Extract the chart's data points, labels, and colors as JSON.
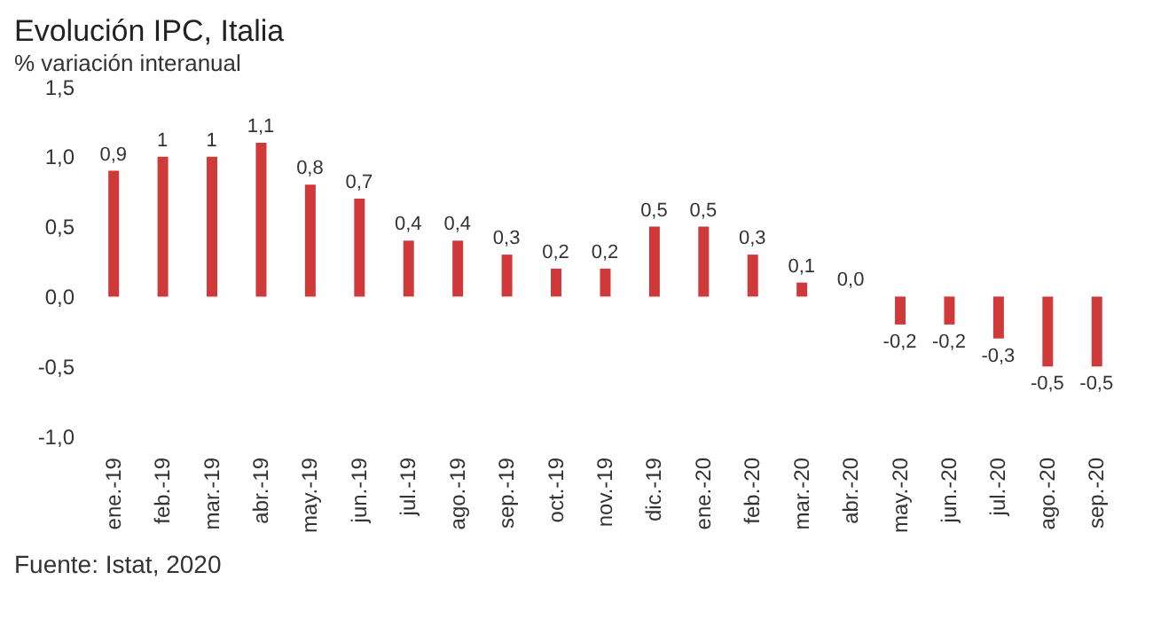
{
  "chart_data": {
    "type": "bar",
    "title": "Evolución IPC, Italia",
    "subtitle": "% variación interanual",
    "categories": [
      "ene.-19",
      "feb.-19",
      "mar.-19",
      "abr.-19",
      "may.-19",
      "jun.-19",
      "jul.-19",
      "ago.-19",
      "sep.-19",
      "oct.-19",
      "nov.-19",
      "dic.-19",
      "ene.-20",
      "feb.-20",
      "mar.-20",
      "abr.-20",
      "may.-20",
      "jun.-20",
      "jul.-20",
      "ago.-20",
      "sep.-20"
    ],
    "values": [
      0.9,
      1,
      1,
      1.1,
      0.8,
      0.7,
      0.4,
      0.4,
      0.3,
      0.2,
      0.2,
      0.5,
      0.5,
      0.3,
      0.1,
      0.0,
      -0.2,
      -0.2,
      -0.3,
      -0.5,
      -0.5
    ],
    "value_labels": [
      "0,9",
      "1",
      "1",
      "1,1",
      "0,8",
      "0,7",
      "0,4",
      "0,4",
      "0,3",
      "0,2",
      "0,2",
      "0,5",
      "0,5",
      "0,3",
      "0,1",
      "0,0",
      "-0,2",
      "-0,2",
      "-0,3",
      "-0,5",
      "-0,5"
    ],
    "color": "#d0393a",
    "ylim": [
      -1,
      1.5
    ],
    "yticks": [
      {
        "value": -1,
        "label": "-1,0"
      },
      {
        "value": -0.5,
        "label": "-0,5"
      },
      {
        "value": 0,
        "label": "0,0"
      },
      {
        "value": 0.5,
        "label": "0,5"
      },
      {
        "value": 1,
        "label": "1,0"
      },
      {
        "value": 1.5,
        "label": "1,5"
      }
    ],
    "grid": false,
    "legend": false,
    "annotations": [
      "Fuente: Istat, 2020"
    ]
  }
}
